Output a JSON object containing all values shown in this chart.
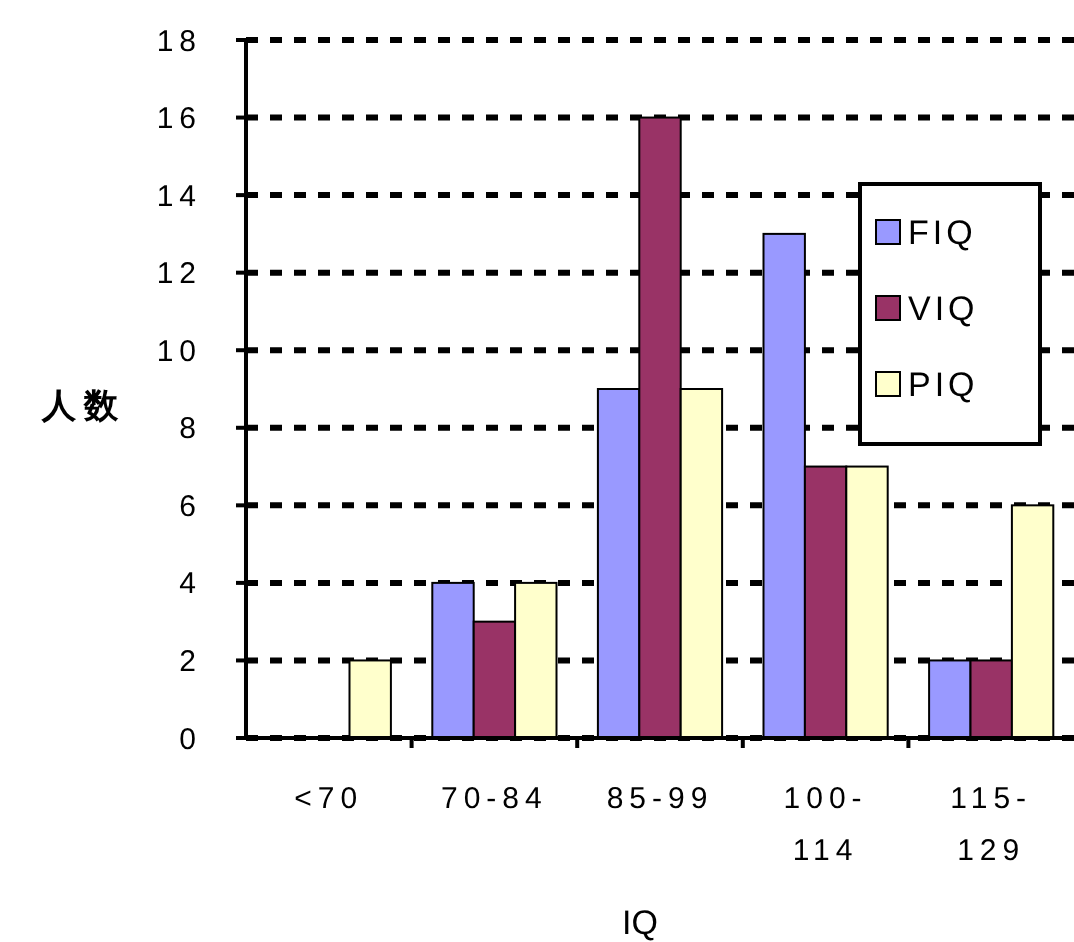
{
  "chart_data": {
    "type": "bar",
    "xlabel": "IQ",
    "ylabel": "人数",
    "categories": [
      "<70",
      "70-84",
      "85-99",
      "100-114",
      "115-129"
    ],
    "series": [
      {
        "name": "FIQ",
        "color": "#9999ff",
        "values": [
          0,
          4,
          9,
          13,
          2
        ]
      },
      {
        "name": "VIQ",
        "color": "#993366",
        "values": [
          0,
          3,
          16,
          7,
          2
        ]
      },
      {
        "name": "PIQ",
        "color": "#ffffcc",
        "values": [
          2,
          4,
          9,
          7,
          6
        ]
      }
    ],
    "ylim": [
      0,
      18
    ],
    "yticks": [
      0,
      2,
      4,
      6,
      8,
      10,
      12,
      14,
      16,
      18
    ],
    "grid": "y",
    "legend": "right"
  }
}
